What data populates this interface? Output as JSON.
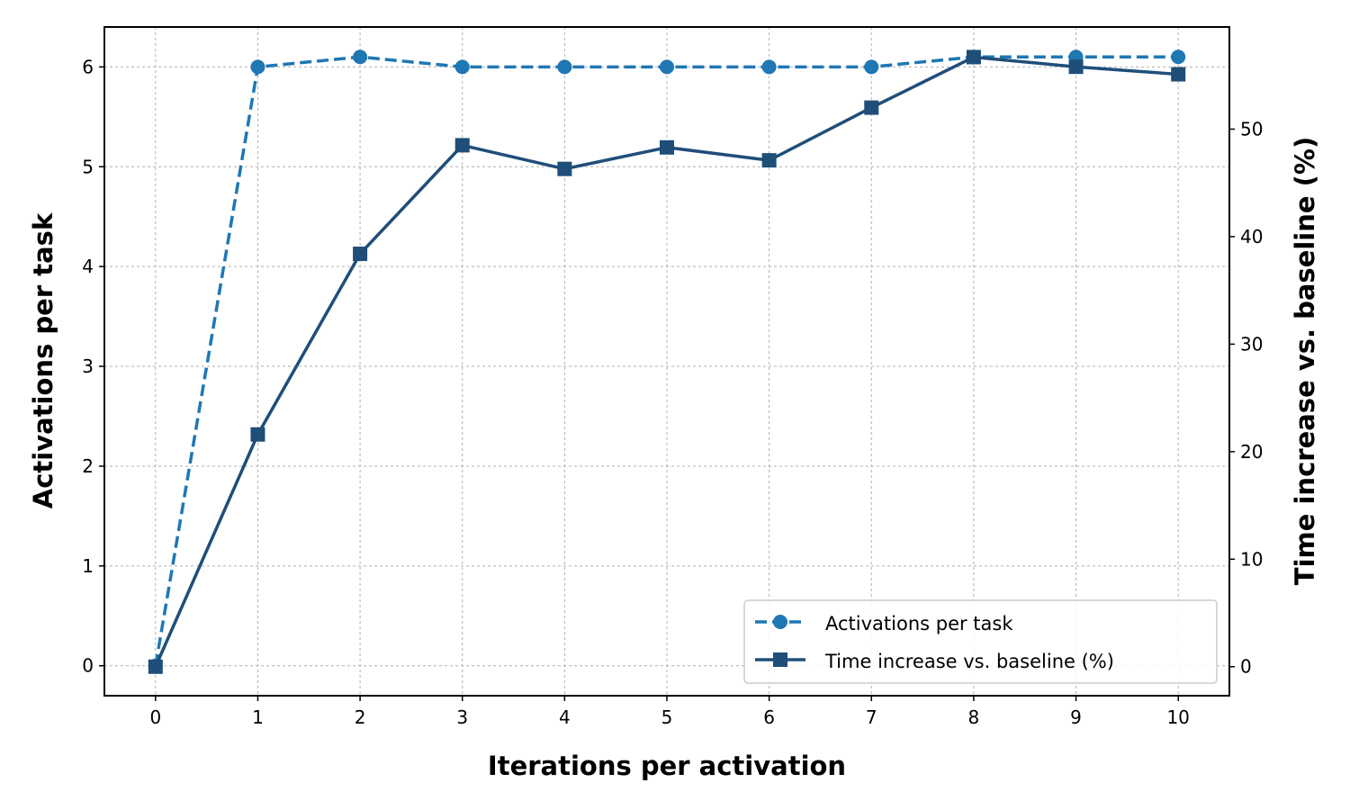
{
  "chart_data": {
    "type": "line",
    "xlabel": "Iterations per activation",
    "ylabel_left": "Activations per task",
    "ylabel_right": "Time increase vs. baseline (%)",
    "x": [
      0,
      1,
      2,
      3,
      4,
      5,
      6,
      7,
      8,
      9,
      10
    ],
    "xlim": [
      -0.5,
      10.5
    ],
    "ylim_left": [
      -0.3,
      6.4
    ],
    "ylim_right": [
      -2.7,
      59.5
    ],
    "x_ticks": [
      0,
      1,
      2,
      3,
      4,
      5,
      6,
      7,
      8,
      9,
      10
    ],
    "y_ticks_left": [
      0,
      1,
      2,
      3,
      4,
      5,
      6
    ],
    "y_ticks_right": [
      0,
      10,
      20,
      30,
      40,
      50
    ],
    "grid": true,
    "legend_position": "lower right",
    "series": [
      {
        "name": "Activations per task",
        "axis": "left",
        "color": "#1f77b4",
        "line_style": "dashed",
        "marker": "circle",
        "values": [
          0,
          6.0,
          6.1,
          6.0,
          6.0,
          6.0,
          6.0,
          6.0,
          6.1,
          6.1,
          6.1
        ]
      },
      {
        "name": "Time increase vs. baseline (%)",
        "axis": "right",
        "color": "#1f4e79",
        "line_style": "solid",
        "marker": "square",
        "values": [
          0,
          21.6,
          38.4,
          48.5,
          46.3,
          48.3,
          47.1,
          52.0,
          56.7,
          55.8,
          55.1
        ]
      }
    ]
  }
}
